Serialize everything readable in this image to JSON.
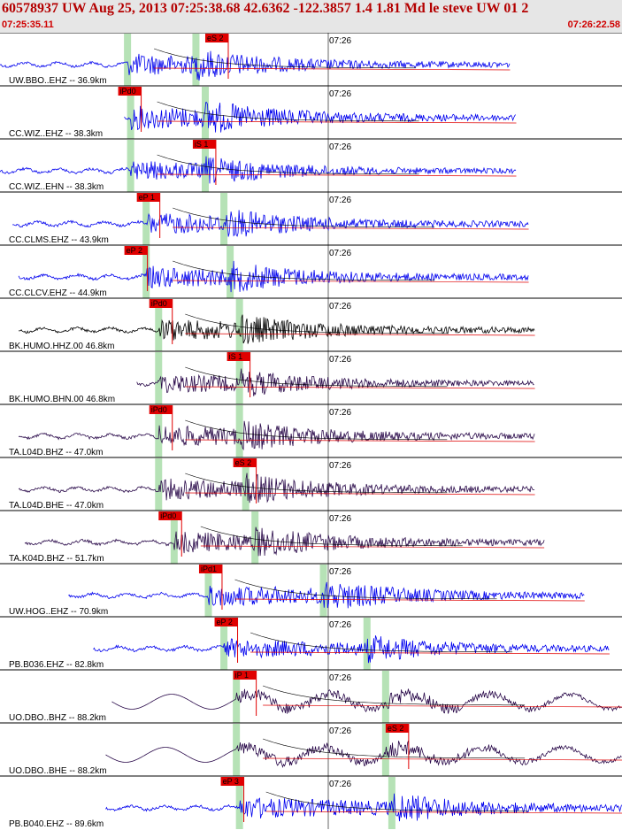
{
  "header": {
    "title": "60578937 UW Aug 25, 2013 07:25:38.68    42.6362 -122.3857  1.4 1.81 Md le steve UW 01    2",
    "time_start": "07:25:35.11",
    "time_end": "07:26:22.58",
    "minute_tick_label": "07:26"
  },
  "colors": {
    "trace_blue": "#0000ee",
    "trace_black": "#000000",
    "trace_purple": "#2a0a4a",
    "pick_red": "#e00000",
    "window_green": "#b6e2b6",
    "header_bg": "#e6e6e6"
  },
  "traces": [
    {
      "label": "UW.BBO..EHZ -- 36.9km",
      "color": "blue",
      "pick": "eS 2",
      "pick_t": 0.33,
      "start": 0.0,
      "end": 0.82,
      "p_t": 0.205,
      "s_t": 0.315,
      "amp": 0.5,
      "period": 2.5,
      "lowfreq": false
    },
    {
      "label": "CC.WIZ..EHZ -- 38.3km",
      "color": "blue",
      "pick": "iPd0",
      "pick_t": 0.19,
      "start": 0.2,
      "end": 0.83,
      "p_t": 0.21,
      "s_t": 0.33,
      "amp": 0.55,
      "period": 2.5,
      "lowfreq": false
    },
    {
      "label": "CC.WIZ..EHN -- 38.3km",
      "color": "blue",
      "pick": "iS 1",
      "pick_t": 0.31,
      "start": 0.0,
      "end": 0.83,
      "p_t": 0.21,
      "s_t": 0.33,
      "amp": 0.45,
      "period": 2.5,
      "lowfreq": false
    },
    {
      "label": "CC.CLMS.EHZ -- 43.9km",
      "color": "blue",
      "pick": "eP 1",
      "pick_t": 0.22,
      "start": 0.02,
      "end": 0.85,
      "p_t": 0.235,
      "s_t": 0.36,
      "amp": 0.5,
      "period": 2.5,
      "lowfreq": false
    },
    {
      "label": "CC.CLCV.EHZ -- 44.9km",
      "color": "blue",
      "pick": "eP 2",
      "pick_t": 0.2,
      "start": 0.03,
      "end": 0.85,
      "p_t": 0.235,
      "s_t": 0.37,
      "amp": 0.5,
      "period": 2.5,
      "lowfreq": false
    },
    {
      "label": "BK.HUMO.HHZ.00 46.8km",
      "color": "black",
      "pick": "iPd0",
      "pick_t": 0.24,
      "start": 0.03,
      "end": 0.86,
      "p_t": 0.255,
      "s_t": 0.385,
      "amp": 0.5,
      "period": 2.5,
      "lowfreq": false
    },
    {
      "label": "BK.HUMO.BHN.00 46.8km",
      "color": "purple",
      "pick": "iS 1",
      "pick_t": 0.365,
      "start": 0.22,
      "end": 0.86,
      "p_t": 0.255,
      "s_t": 0.385,
      "amp": 0.45,
      "period": 2.5,
      "lowfreq": false
    },
    {
      "label": "TA.L04D.BHZ -- 47.0km",
      "color": "purple",
      "pick": "iPd0",
      "pick_t": 0.24,
      "start": 0.03,
      "end": 0.86,
      "p_t": 0.255,
      "s_t": 0.385,
      "amp": 0.5,
      "period": 2.5,
      "lowfreq": false
    },
    {
      "label": "TA.L04D.BHE -- 47.0km",
      "color": "purple",
      "pick": "eS 2",
      "pick_t": 0.375,
      "start": 0.03,
      "end": 0.86,
      "p_t": 0.255,
      "s_t": 0.395,
      "amp": 0.5,
      "period": 2.5,
      "lowfreq": false
    },
    {
      "label": "TA.K04D.BHZ -- 51.7km",
      "color": "purple",
      "pick": "iPd0",
      "pick_t": 0.255,
      "start": 0.04,
      "end": 0.875,
      "p_t": 0.28,
      "s_t": 0.41,
      "amp": 0.5,
      "period": 2.5,
      "lowfreq": false
    },
    {
      "label": "UW.HOG..EHZ -- 70.9km",
      "color": "blue",
      "pick": "iPd1",
      "pick_t": 0.32,
      "start": 0.11,
      "end": 0.94,
      "p_t": 0.335,
      "s_t": 0.52,
      "amp": 0.5,
      "period": 2.5,
      "lowfreq": false
    },
    {
      "label": "PB.B036.EHZ -- 82.8km",
      "color": "blue",
      "pick": "eP 2",
      "pick_t": 0.345,
      "start": 0.15,
      "end": 0.98,
      "p_t": 0.36,
      "s_t": 0.59,
      "amp": 0.45,
      "period": 2.5,
      "lowfreq": false
    },
    {
      "label": "UO.DBO..BHZ -- 88.2km",
      "color": "purple",
      "pick": "iP 1",
      "pick_t": 0.375,
      "start": 0.18,
      "end": 1.0,
      "p_t": 0.38,
      "s_t": 0.62,
      "amp": 0.6,
      "period": 45,
      "lowfreq": true
    },
    {
      "label": "UO.DBO..BHE -- 88.2km",
      "color": "purple",
      "pick": "eS 2",
      "pick_t": 0.62,
      "start": 0.17,
      "end": 1.0,
      "p_t": 0.38,
      "s_t": 0.62,
      "amp": 0.6,
      "period": 45,
      "lowfreq": true
    },
    {
      "label": "PB.B040.EHZ -- 89.6km",
      "color": "blue",
      "pick": "eP 3",
      "pick_t": 0.355,
      "start": 0.17,
      "end": 1.0,
      "p_t": 0.385,
      "s_t": 0.63,
      "amp": 0.5,
      "period": 2.5,
      "lowfreq": false
    }
  ]
}
